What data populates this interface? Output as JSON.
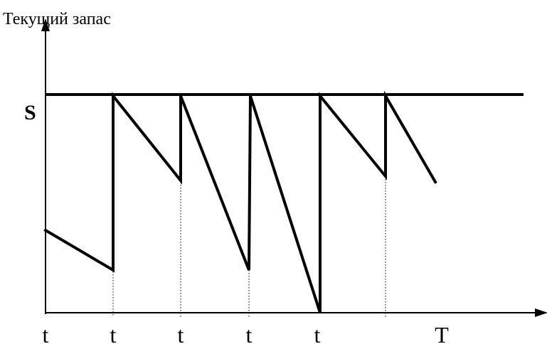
{
  "diagram": {
    "y_axis_title": "Текущий запас",
    "max_stock_label": "S",
    "x_tick_labels": [
      "t",
      "t",
      "t",
      "t",
      "t",
      "T"
    ]
  }
}
